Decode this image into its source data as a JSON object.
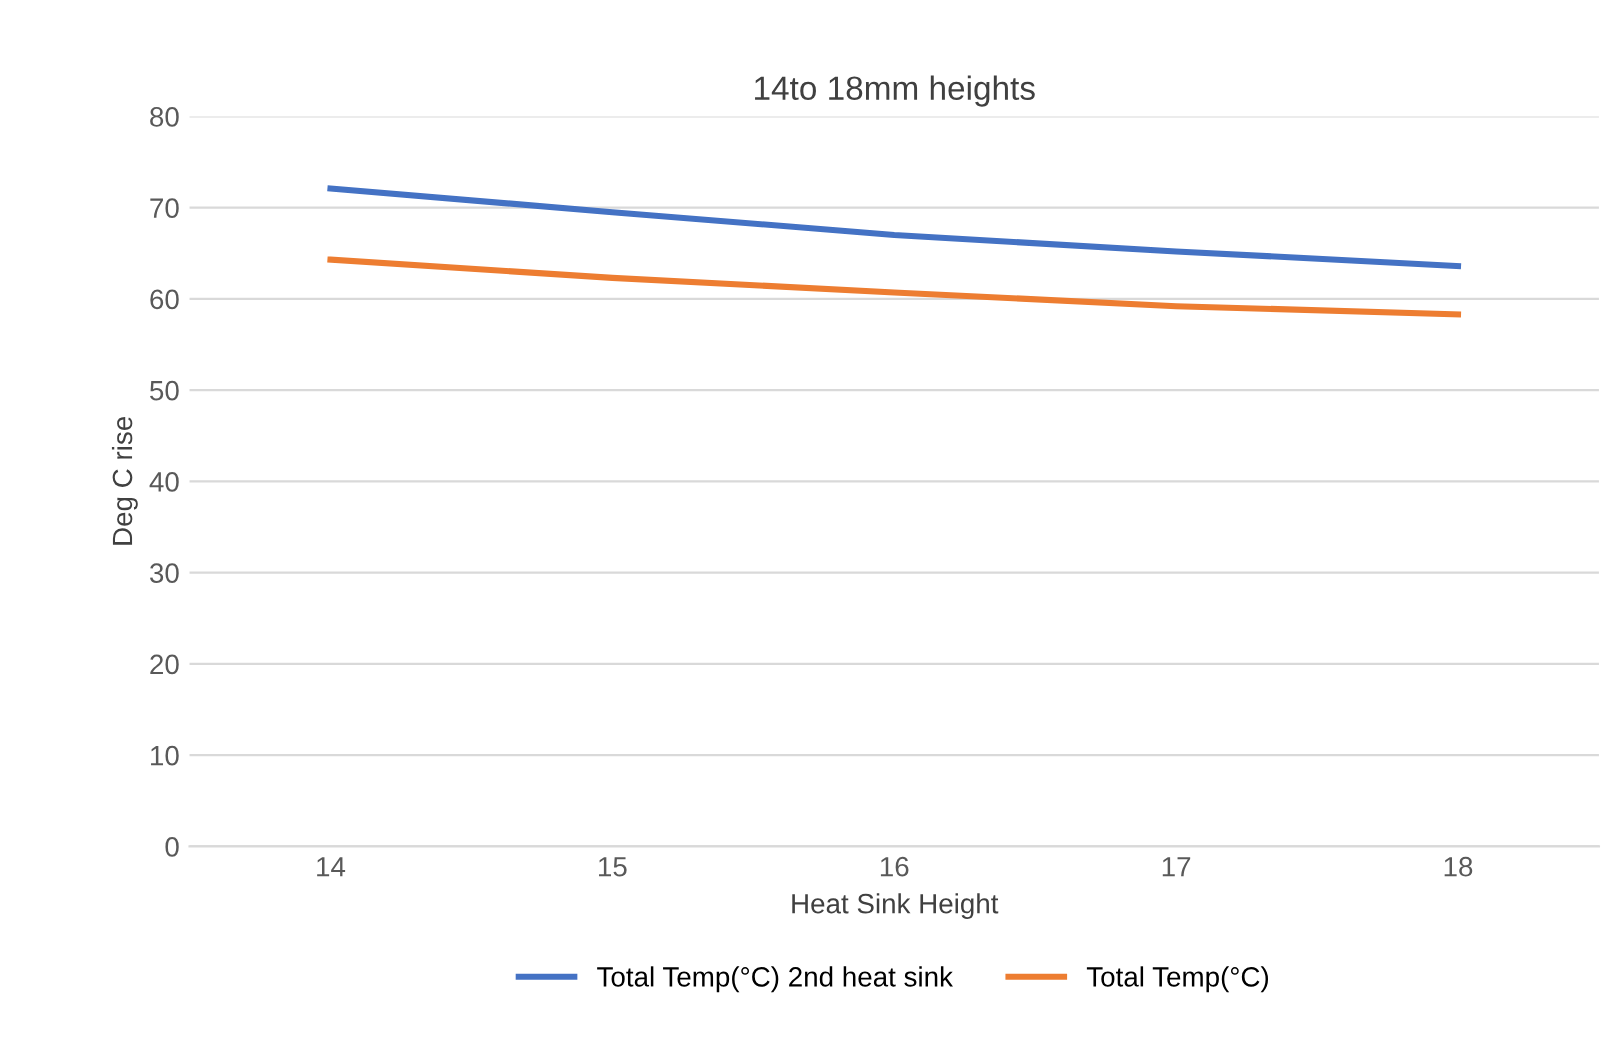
{
  "chart_data": {
    "type": "line",
    "title": "14to 18mm heights",
    "xlabel": "Heat Sink Height",
    "ylabel": "Deg C rise",
    "categories": [
      "14",
      "15",
      "16",
      "17",
      "18"
    ],
    "series": [
      {
        "name": "Total Temp(°C) 2nd heat sink",
        "color": "#4472c4",
        "values": [
          72.1,
          69.5,
          67.0,
          65.2,
          63.6
        ]
      },
      {
        "name": "Total Temp(°C)",
        "color": "#ed7d31",
        "values": [
          64.3,
          62.3,
          60.7,
          59.2,
          58.3
        ]
      }
    ],
    "ylim": [
      0,
      80
    ],
    "yticks": [
      0,
      10,
      20,
      30,
      40,
      50,
      60,
      70,
      80
    ],
    "grid": "y",
    "legend": "bottom",
    "marker": "none",
    "line_style": "solid"
  }
}
